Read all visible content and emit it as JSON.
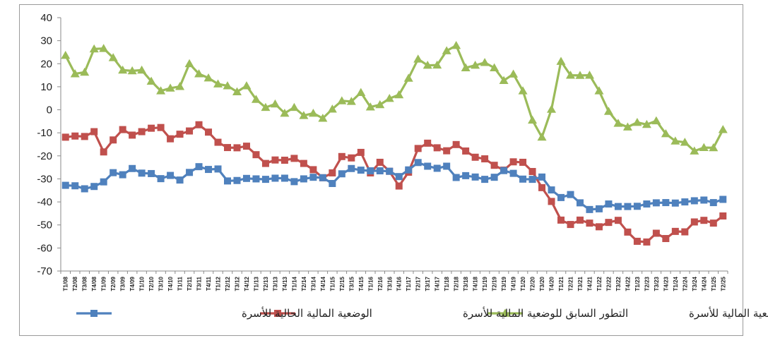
{
  "chart_data": {
    "type": "line",
    "title": "",
    "xlabel": "",
    "ylabel": "",
    "ylim": [
      -70,
      40
    ],
    "yticks": [
      40,
      30,
      20,
      10,
      0,
      -10,
      -20,
      -30,
      -40,
      -50,
      -60,
      -70
    ],
    "grid": false,
    "legend_position": "bottom",
    "categories": [
      "T1/08",
      "T2/08",
      "T3/08",
      "T4/08",
      "T1/09",
      "T2/09",
      "T3/09",
      "T4/09",
      "T1/10",
      "T2/10",
      "T3/10",
      "T4/10",
      "T1/11",
      "T2/11",
      "T3/11",
      "T4/11",
      "T1/12",
      "T2/12",
      "T3/12",
      "T4/12",
      "T1/13",
      "T2/13",
      "T3/13",
      "T4/13",
      "T1/14",
      "T2/14",
      "T3/14",
      "T4/14",
      "T1/15",
      "T2/15",
      "T3/15",
      "T4/15",
      "T1/16",
      "T2/16",
      "T3/16",
      "T4/16",
      "T1/17",
      "T2/17",
      "T3/17",
      "T4/17",
      "T1/18",
      "T2/18",
      "T3/18",
      "T4/18",
      "T1/19",
      "T2/19",
      "T3/19",
      "T4/19",
      "T1/20",
      "T2/20",
      "T3/20",
      "T4/20",
      "T1/21",
      "T2/21",
      "T3/21",
      "T4/21",
      "T1/22",
      "T2/22",
      "T3/22",
      "T4/22",
      "T1/23",
      "T2/23",
      "T3/23",
      "T4/23",
      "T1/24",
      "T2/24",
      "T3/24",
      "T4/24",
      "T1/25",
      "T2/25"
    ],
    "series": [
      {
        "name": "الوضعية المالية الحالية للأسرة",
        "color": "#4f81bd",
        "marker": "square",
        "values": [
          -32.8,
          -33,
          -34.3,
          -33.3,
          -31.3,
          -27.3,
          -28.2,
          -25.5,
          -27.5,
          -27.7,
          -29.9,
          -28.5,
          -30.5,
          -27.2,
          -24.7,
          -25.9,
          -25.7,
          -30.9,
          -30.7,
          -29.8,
          -30,
          -30.2,
          -29.7,
          -29.7,
          -31.2,
          -30,
          -29.3,
          -29.5,
          -32,
          -27.8,
          -25.5,
          -26.2,
          -26.5,
          -26.5,
          -26.7,
          -29,
          -26.1,
          -22.9,
          -24.5,
          -25.4,
          -24.5,
          -29.4,
          -28.6,
          -29.2,
          -30.2,
          -29.3,
          -26.4,
          -27.6,
          -30.1,
          -30.2,
          -29.2,
          -34.8,
          -38.1,
          -36.8,
          -40.4,
          -43.3,
          -43,
          -40.9,
          -42,
          -42,
          -41.9,
          -40.9,
          -40.4,
          -40.3,
          -40.5,
          -40,
          -39.5,
          -39.2,
          -40.3,
          -38.9
        ]
      },
      {
        "name": "التطور السابق للوضعية المالية للأسرة",
        "color": "#c0504d",
        "marker": "square",
        "values": [
          -11.9,
          -11.4,
          -11.6,
          -9.5,
          -18.3,
          -13.1,
          -8.6,
          -11,
          -9.5,
          -8,
          -7.7,
          -12.6,
          -10.6,
          -9.2,
          -6.5,
          -9.7,
          -14.1,
          -16.4,
          -16.5,
          -15.8,
          -19.5,
          -23.3,
          -21.8,
          -21.9,
          -21.1,
          -23.3,
          -26,
          -29.5,
          -27.4,
          -20.3,
          -20.9,
          -18.5,
          -27.4,
          -22.8,
          -26.7,
          -33.1,
          -27.1,
          -16.8,
          -14.5,
          -16.5,
          -17.8,
          -15.1,
          -17.9,
          -20.6,
          -21.3,
          -24.1,
          -26.2,
          -22.6,
          -22.8,
          -26.8,
          -33.8,
          -39.8,
          -47.9,
          -49.8,
          -47.9,
          -49.2,
          -50.8,
          -48.9,
          -48,
          -53.1,
          -57.1,
          -57.4,
          -53.6,
          -55.9,
          -52.8,
          -53,
          -48.7,
          -48,
          -49.2,
          -46.1
        ]
      },
      {
        "name": "التطور المرتقب للوضعية المالية للأسرة",
        "color": "#9bbb59",
        "marker": "triangle",
        "values": [
          23.6,
          15.6,
          16.3,
          26.4,
          26.6,
          22.6,
          17.2,
          16.9,
          17.2,
          12.4,
          8.2,
          9.4,
          10.1,
          20,
          15.6,
          13.8,
          11.2,
          10.4,
          7.8,
          10.4,
          4.5,
          1,
          2.5,
          -1.5,
          1,
          -2.5,
          -1.5,
          -3.7,
          0.3,
          3.9,
          3.6,
          7.5,
          1.2,
          2.2,
          4.9,
          6.5,
          13.7,
          22,
          19.3,
          19.4,
          25.6,
          27.9,
          18.2,
          19.3,
          20.5,
          18.2,
          12.7,
          15.5,
          8.2,
          -4.5,
          -11.9,
          0.2,
          21,
          15,
          14.9,
          15,
          8.2,
          -0.7,
          -5.9,
          -7.5,
          -5.5,
          -6.4,
          -4.8,
          -10.4,
          -13.6,
          -14.1,
          -17.9,
          -16.4,
          -16.5,
          -8.6
        ]
      }
    ]
  }
}
